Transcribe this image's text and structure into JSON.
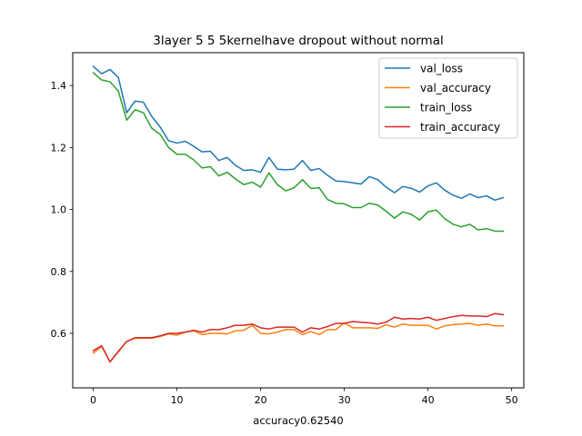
{
  "chart_data": {
    "type": "line",
    "title": "3layer  5 5 5kernelhave dropout without normal",
    "xlabel": "accuracy0.62540",
    "ylabel": "",
    "xlim": [
      -2.45,
      51.45
    ],
    "ylim": [
      0.424,
      1.506
    ],
    "xticks": [
      0,
      10,
      20,
      30,
      40,
      50
    ],
    "yticks": [
      0.6,
      0.8,
      1.0,
      1.2,
      1.4
    ],
    "ytick_labels": [
      "0.6",
      "0.8",
      "1.0",
      "1.2",
      "1.4"
    ],
    "grid": false,
    "legend_position": "top-right",
    "x": [
      0,
      1,
      2,
      3,
      4,
      5,
      6,
      7,
      8,
      9,
      10,
      11,
      12,
      13,
      14,
      15,
      16,
      17,
      18,
      19,
      20,
      21,
      22,
      23,
      24,
      25,
      26,
      27,
      28,
      29,
      30,
      31,
      32,
      33,
      34,
      35,
      36,
      37,
      38,
      39,
      40,
      41,
      42,
      43,
      44,
      45,
      46,
      47,
      48,
      49
    ],
    "series": [
      {
        "name": "val_loss",
        "color": "#1f77b4",
        "values": [
          1.462,
          1.438,
          1.452,
          1.426,
          1.312,
          1.35,
          1.346,
          1.3,
          1.266,
          1.222,
          1.214,
          1.22,
          1.204,
          1.186,
          1.188,
          1.158,
          1.168,
          1.142,
          1.126,
          1.128,
          1.12,
          1.168,
          1.13,
          1.128,
          1.13,
          1.158,
          1.126,
          1.132,
          1.11,
          1.092,
          1.09,
          1.086,
          1.082,
          1.106,
          1.096,
          1.072,
          1.054,
          1.074,
          1.068,
          1.056,
          1.076,
          1.086,
          1.062,
          1.046,
          1.036,
          1.05,
          1.038,
          1.044,
          1.03,
          1.038
        ]
      },
      {
        "name": "val_accuracy",
        "color": "#ff7f0e",
        "values": [
          0.536,
          0.558,
          0.508,
          0.54,
          0.574,
          0.584,
          0.584,
          0.584,
          0.59,
          0.598,
          0.594,
          0.604,
          0.608,
          0.596,
          0.6,
          0.6,
          0.598,
          0.608,
          0.61,
          0.626,
          0.6,
          0.598,
          0.604,
          0.612,
          0.612,
          0.596,
          0.606,
          0.596,
          0.612,
          0.612,
          0.634,
          0.618,
          0.618,
          0.618,
          0.616,
          0.628,
          0.62,
          0.63,
          0.626,
          0.626,
          0.626,
          0.614,
          0.624,
          0.628,
          0.63,
          0.632,
          0.626,
          0.63,
          0.624,
          0.624
        ]
      },
      {
        "name": "train_loss",
        "color": "#2ca02c",
        "values": [
          1.441,
          1.418,
          1.412,
          1.382,
          1.288,
          1.322,
          1.312,
          1.262,
          1.242,
          1.2,
          1.178,
          1.178,
          1.16,
          1.134,
          1.138,
          1.108,
          1.12,
          1.098,
          1.08,
          1.088,
          1.072,
          1.118,
          1.08,
          1.06,
          1.07,
          1.096,
          1.068,
          1.07,
          1.032,
          1.02,
          1.018,
          1.006,
          1.006,
          1.02,
          1.014,
          0.994,
          0.972,
          0.992,
          0.984,
          0.966,
          0.992,
          0.998,
          0.97,
          0.952,
          0.944,
          0.952,
          0.934,
          0.938,
          0.93,
          0.93
        ]
      },
      {
        "name": "train_accuracy",
        "color": "#d62728",
        "values": [
          0.544,
          0.56,
          0.508,
          0.542,
          0.574,
          0.586,
          0.586,
          0.586,
          0.592,
          0.6,
          0.6,
          0.604,
          0.61,
          0.604,
          0.612,
          0.612,
          0.618,
          0.626,
          0.626,
          0.63,
          0.618,
          0.614,
          0.62,
          0.62,
          0.62,
          0.604,
          0.618,
          0.614,
          0.622,
          0.632,
          0.632,
          0.638,
          0.636,
          0.634,
          0.63,
          0.636,
          0.652,
          0.646,
          0.648,
          0.646,
          0.652,
          0.642,
          0.648,
          0.654,
          0.658,
          0.656,
          0.656,
          0.654,
          0.664,
          0.66
        ]
      }
    ]
  }
}
